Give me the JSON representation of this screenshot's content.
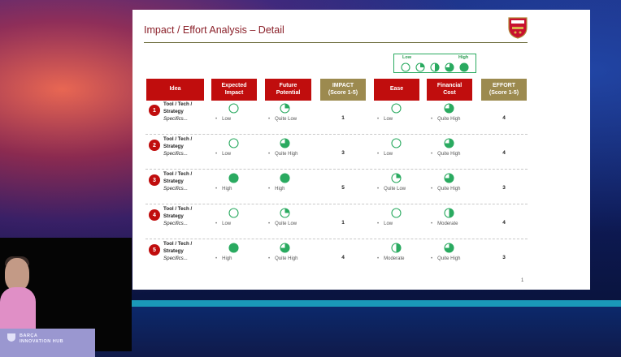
{
  "slide": {
    "title": "Impact / Effort Analysis – Detail",
    "page_number": "1",
    "legend": {
      "low_label": "Low",
      "high_label": "High",
      "levels": [
        0,
        0.25,
        0.5,
        0.75,
        1
      ]
    }
  },
  "headers": [
    {
      "label": "Idea",
      "kind": "red"
    },
    {
      "label": "Expected\nImpact",
      "kind": "red"
    },
    {
      "label": "Future\nPotential",
      "kind": "red"
    },
    {
      "label": "IMPACT\n(Score 1-5)",
      "kind": "olive"
    },
    {
      "label": "Ease",
      "kind": "red"
    },
    {
      "label": "Financial\nCost",
      "kind": "red"
    },
    {
      "label": "EFFORT\n(Score 1-5)",
      "kind": "olive"
    }
  ],
  "rows": [
    {
      "num": "1",
      "idea": "Tool / Tech /\nStrategy",
      "spec": "Specifics...",
      "expected": {
        "level": 0,
        "label": "Low"
      },
      "future": {
        "level": 0.25,
        "label": "Quite Low"
      },
      "impact_score": "1",
      "ease": {
        "level": 0,
        "label": "Low"
      },
      "cost": {
        "level": 0.75,
        "label": "Quite High"
      },
      "effort_score": "4"
    },
    {
      "num": "2",
      "idea": "Tool / Tech /\nStrategy",
      "spec": "Specifics...",
      "expected": {
        "level": 0,
        "label": "Low"
      },
      "future": {
        "level": 0.75,
        "label": "Quite High"
      },
      "impact_score": "3",
      "ease": {
        "level": 0,
        "label": "Low"
      },
      "cost": {
        "level": 0.75,
        "label": "Quite High"
      },
      "effort_score": "4"
    },
    {
      "num": "3",
      "idea": "Tool / Tech /\nStrategy",
      "spec": "Specifics...",
      "expected": {
        "level": 1,
        "label": "High"
      },
      "future": {
        "level": 1,
        "label": "High"
      },
      "impact_score": "5",
      "ease": {
        "level": 0.25,
        "label": "Quite Low"
      },
      "cost": {
        "level": 0.75,
        "label": "Quite High"
      },
      "effort_score": "3"
    },
    {
      "num": "4",
      "idea": "Tool / Tech /\nStrategy",
      "spec": "Specifics...",
      "expected": {
        "level": 0,
        "label": "Low"
      },
      "future": {
        "level": 0.25,
        "label": "Quite Low"
      },
      "impact_score": "1",
      "ease": {
        "level": 0,
        "label": "Low"
      },
      "cost": {
        "level": 0.5,
        "label": "Moderate"
      },
      "effort_score": "4"
    },
    {
      "num": "5",
      "idea": "Tool / Tech /\nStrategy",
      "spec": "Specifics...",
      "expected": {
        "level": 1,
        "label": "High"
      },
      "future": {
        "level": 0.75,
        "label": "Quite High"
      },
      "impact_score": "4",
      "ease": {
        "level": 0.5,
        "label": "Moderate"
      },
      "cost": {
        "level": 0.75,
        "label": "Quite High"
      },
      "effort_score": "3"
    }
  ],
  "venue": {
    "podium_text": "BARÇA\nINNOVATION HUB"
  },
  "colors": {
    "green": "#2aaa60",
    "red": "#c00d0d",
    "olive": "#9c8a4f",
    "title": "#8a1f28"
  }
}
